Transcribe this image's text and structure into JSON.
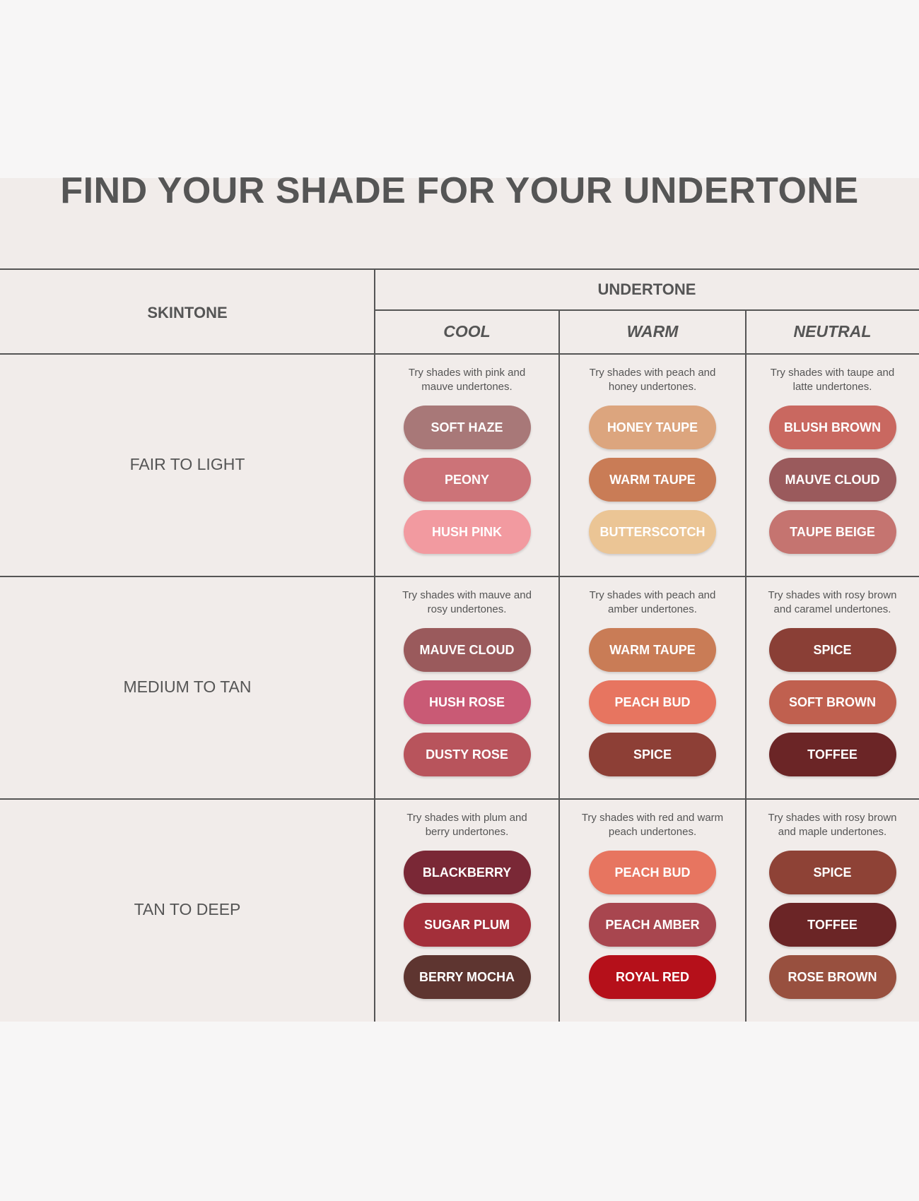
{
  "title": "FIND YOUR SHADE FOR YOUR UNDERTONE",
  "headers": {
    "skintone": "SKINTONE",
    "undertone": "UNDERTONE",
    "columns": [
      "COOL",
      "WARM",
      "NEUTRAL"
    ]
  },
  "rows": [
    {
      "label": "FAIR TO LIGHT",
      "cells": [
        {
          "desc": [
            "Try shades with pink and",
            "mauve undertones."
          ],
          "shades": [
            {
              "name": "SOFT HAZE",
              "color": "#a87878"
            },
            {
              "name": "PEONY",
              "color": "#cc7378"
            },
            {
              "name": "HUSH PINK",
              "color": "#f29aa0"
            }
          ]
        },
        {
          "desc": [
            "Try shades with peach and",
            "honey undertones."
          ],
          "shades": [
            {
              "name": "HONEY TAUPE",
              "color": "#dca57e"
            },
            {
              "name": "WARM TAUPE",
              "color": "#c97c56"
            },
            {
              "name": "BUTTERSCOTCH",
              "color": "#ebc595"
            }
          ]
        },
        {
          "desc": [
            "Try shades with taupe and",
            "latte undertones."
          ],
          "shades": [
            {
              "name": "BLUSH BROWN",
              "color": "#c96860"
            },
            {
              "name": "MAUVE CLOUD",
              "color": "#9a5a5c"
            },
            {
              "name": "TAUPE BEIGE",
              "color": "#c57470"
            }
          ]
        }
      ]
    },
    {
      "label": "MEDIUM TO TAN",
      "cells": [
        {
          "desc": [
            "Try shades with mauve and",
            "rosy undertones."
          ],
          "shades": [
            {
              "name": "MAUVE CLOUD",
              "color": "#9a5a5c"
            },
            {
              "name": "HUSH ROSE",
              "color": "#c95a75"
            },
            {
              "name": "DUSTY ROSE",
              "color": "#b8545c"
            }
          ]
        },
        {
          "desc": [
            "Try shades with peach and",
            "amber undertones."
          ],
          "shades": [
            {
              "name": "WARM TAUPE",
              "color": "#c97c56"
            },
            {
              "name": "PEACH BUD",
              "color": "#e77560"
            },
            {
              "name": "SPICE",
              "color": "#8d3f36"
            }
          ]
        },
        {
          "desc": [
            "Try shades with rosy brown",
            "and caramel undertones."
          ],
          "shades": [
            {
              "name": "SPICE",
              "color": "#8a3f36"
            },
            {
              "name": "SOFT BROWN",
              "color": "#c0604f"
            },
            {
              "name": "TOFFEE",
              "color": "#6b2526"
            }
          ]
        }
      ]
    },
    {
      "label": "TAN TO DEEP",
      "cells": [
        {
          "desc": [
            "Try shades with plum and",
            "berry undertones."
          ],
          "shades": [
            {
              "name": "BLACKBERRY",
              "color": "#7a2836"
            },
            {
              "name": "SUGAR PLUM",
              "color": "#a32f3a"
            },
            {
              "name": "BERRY MOCHA",
              "color": "#5e3530"
            }
          ]
        },
        {
          "desc": [
            "Try shades with red and warm",
            "peach undertones."
          ],
          "shades": [
            {
              "name": "PEACH BUD",
              "color": "#e77560"
            },
            {
              "name": "PEACH AMBER",
              "color": "#a8464f"
            },
            {
              "name": "ROYAL RED",
              "color": "#b5101a"
            }
          ]
        },
        {
          "desc": [
            "Try shades with rosy brown",
            "and maple undertones."
          ],
          "shades": [
            {
              "name": "SPICE",
              "color": "#8e4236"
            },
            {
              "name": "TOFFEE",
              "color": "#6b2526"
            },
            {
              "name": "ROSE BROWN",
              "color": "#98503f"
            }
          ]
        }
      ]
    }
  ]
}
